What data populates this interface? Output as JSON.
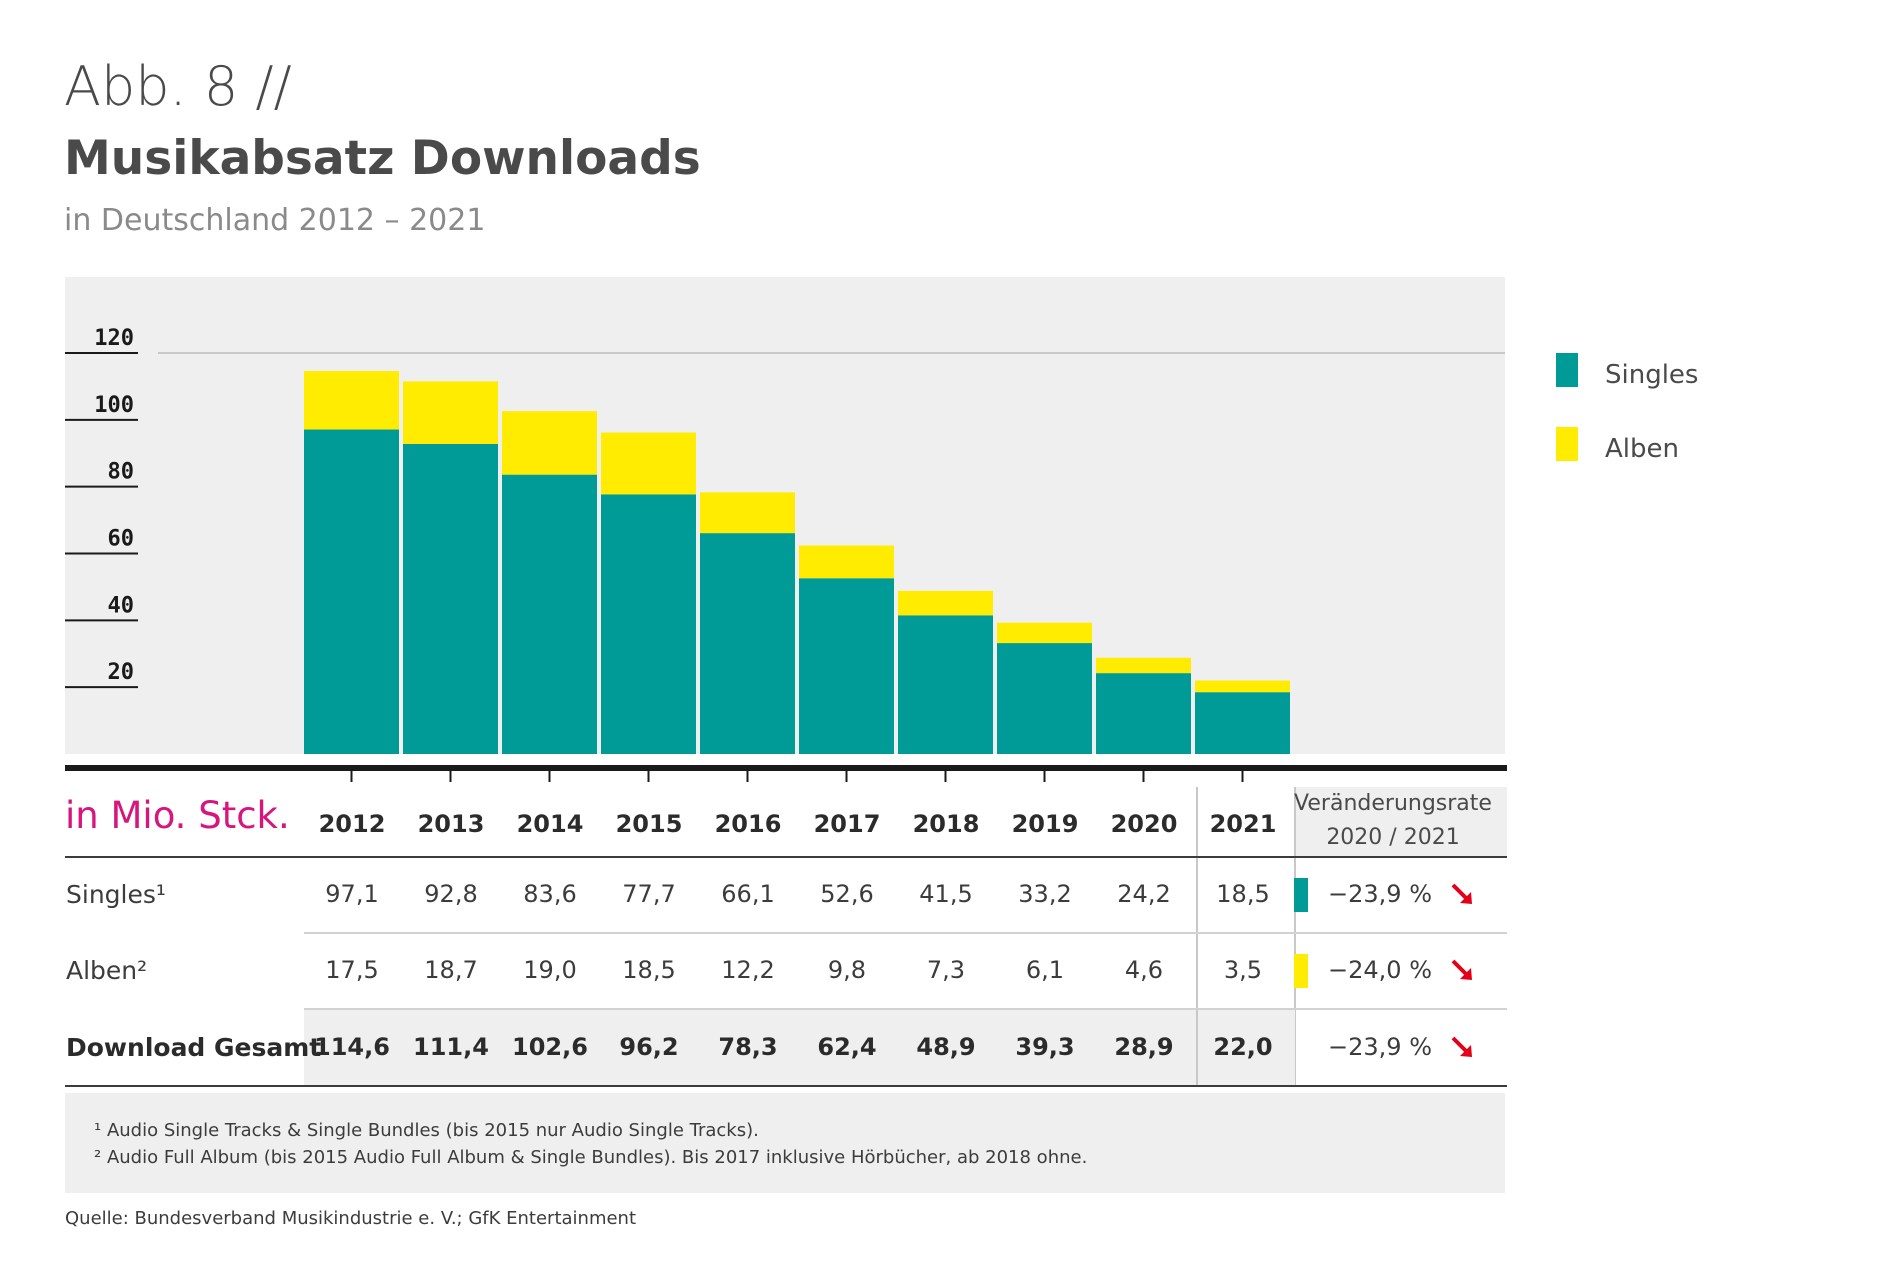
{
  "header": {
    "fig_label": "Abb. 8 //",
    "title": "Musikabsatz Downloads",
    "subtitle": "in Deutschland 2012 – 2021"
  },
  "colors": {
    "singles": "#009b96",
    "alben": "#ffec00",
    "accent": "#d6157e",
    "arrow": "#e2001a",
    "panel": "#efefef"
  },
  "legend": [
    {
      "label": "Singles",
      "color": "#009b96"
    },
    {
      "label": "Alben",
      "color": "#ffec00"
    }
  ],
  "chart_data": {
    "type": "bar",
    "stacked": true,
    "categories": [
      "2012",
      "2013",
      "2014",
      "2015",
      "2016",
      "2017",
      "2018",
      "2019",
      "2020",
      "2021"
    ],
    "series": [
      {
        "name": "Singles",
        "values": [
          97.1,
          92.8,
          83.6,
          77.7,
          66.1,
          52.6,
          41.5,
          33.2,
          24.2,
          18.5
        ]
      },
      {
        "name": "Alben",
        "values": [
          17.5,
          18.7,
          19.0,
          18.5,
          12.2,
          9.8,
          7.3,
          6.1,
          4.6,
          3.5
        ]
      }
    ],
    "yticks": [
      "120",
      "100",
      "80",
      "60",
      "40",
      "20"
    ],
    "ylim": [
      0,
      120
    ],
    "grid": false,
    "legend_position": "right"
  },
  "table": {
    "unit_label": "in Mio. Stck.",
    "rate_header_line1": "Veränderungsrate",
    "rate_header_line2": "2020 / 2021",
    "rows": [
      {
        "label": "Singles¹",
        "values": [
          "97,1",
          "92,8",
          "83,6",
          "77,7",
          "66,1",
          "52,6",
          "41,5",
          "33,2",
          "24,2",
          "18,5"
        ],
        "rate": "−23,9 %",
        "marker_color": "#009b96"
      },
      {
        "label": "Alben²",
        "values": [
          "17,5",
          "18,7",
          "19,0",
          "18,5",
          "12,2",
          "9,8",
          "7,3",
          "6,1",
          "4,6",
          "3,5"
        ],
        "rate": "−24,0 %",
        "marker_color": "#ffec00"
      },
      {
        "label": "Download Gesamt",
        "values": [
          "114,6",
          "111,4",
          "102,6",
          "96,2",
          "78,3",
          "62,4",
          "48,9",
          "39,3",
          "28,9",
          "22,0"
        ],
        "rate": "−23,9 %",
        "marker_color": ""
      }
    ]
  },
  "footnotes": [
    "¹ Audio Single Tracks & Single Bundles (bis 2015 nur Audio Single Tracks).",
    "² Audio Full Album (bis 2015 Audio Full Album & Single Bundles). Bis 2017 inklusive Hörbücher, ab 2018 ohne."
  ],
  "source": "Quelle: Bundesverband Musikindustrie e. V.; GfK Entertainment"
}
